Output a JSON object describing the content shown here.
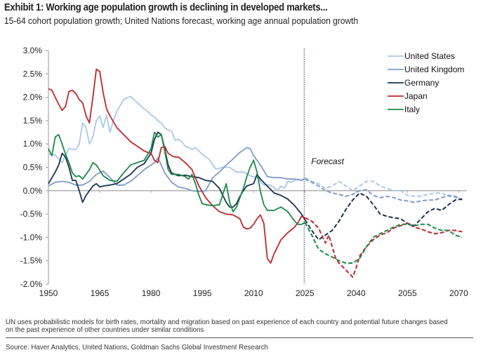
{
  "header": {
    "title": "Exhibit 1: Working age population growth is declining in developed markets...",
    "subtitle": "15-64 cohort population growth; United Nations forecast, working age annual population growth"
  },
  "footer": {
    "note": "UN uses probabilistic models for birth rates, mortality and migration based on past experience of each country and potential future changes based on the past experience of other countries under similar conditions",
    "source": "Source: Haver Analytics, United Nations, Goldman Sachs Global Investment Research"
  },
  "chart_data": {
    "type": "line",
    "title": "Exhibit 1: Working age population growth is declining in developed markets...",
    "subtitle": "15-64 cohort population growth; United Nations forecast, working age annual population growth",
    "xlabel": "",
    "ylabel": "",
    "xlim": [
      1950,
      2072
    ],
    "ylim": [
      -2.0,
      3.0
    ],
    "x_ticks": [
      "1950",
      "1965",
      "1980",
      "1995",
      "2010",
      "2025",
      "2040",
      "2055",
      "2070"
    ],
    "x_tick_values": [
      1950,
      1965,
      1980,
      1995,
      2010,
      2025,
      2040,
      2055,
      2070
    ],
    "y_ticks": [
      "3.0%",
      "2.5%",
      "2.0%",
      "1.5%",
      "1.0%",
      "0.5%",
      "0.0%",
      "-0.5%",
      "-1.0%",
      "-1.5%",
      "-2.0%"
    ],
    "y_tick_values": [
      3.0,
      2.5,
      2.0,
      1.5,
      1.0,
      0.5,
      0.0,
      -0.5,
      -1.0,
      -1.5,
      -2.0
    ],
    "forecast_start": 2025,
    "forecast_label": "Forecast",
    "legend_position": "top-right",
    "grid": false,
    "series": [
      {
        "name": "United States",
        "color": "#a9c9e6",
        "x": [
          1950,
          1952,
          1954,
          1955,
          1956,
          1958,
          1959,
          1960,
          1961,
          1962,
          1963,
          1964,
          1965,
          1966,
          1967,
          1968,
          1969,
          1970,
          1972,
          1974,
          1976,
          1978,
          1979,
          1980,
          1981,
          1982,
          1983,
          1984,
          1985,
          1986,
          1987,
          1988,
          1989,
          1990,
          1991,
          1992,
          1993,
          1995,
          1997,
          1999,
          2001,
          2003,
          2005,
          2007,
          2009,
          2011,
          2013,
          2015,
          2017,
          2018,
          2019,
          2020,
          2021,
          2022,
          2023,
          2024,
          2025,
          2027,
          2029,
          2031,
          2033,
          2035,
          2037,
          2039,
          2041,
          2043,
          2045,
          2047,
          2049,
          2051,
          2053,
          2055,
          2057,
          2059,
          2061,
          2063,
          2065,
          2067,
          2069,
          2071
        ],
        "values": [
          0.78,
          0.76,
          0.6,
          0.75,
          0.9,
          0.88,
          1.0,
          1.45,
          1.35,
          1.0,
          1.15,
          1.5,
          1.6,
          1.35,
          1.62,
          1.25,
          1.5,
          1.7,
          1.95,
          2.02,
          1.88,
          1.75,
          1.7,
          1.62,
          1.58,
          1.5,
          1.45,
          1.35,
          1.3,
          1.28,
          1.08,
          1.1,
          1.05,
          0.95,
          0.92,
          0.88,
          0.92,
          0.78,
          0.67,
          0.46,
          0.5,
          0.5,
          0.4,
          0.4,
          0.32,
          0.28,
          0.12,
          0.12,
          0.0,
          0.1,
          0.05,
          0.2,
          0.18,
          0.22,
          0.25,
          0.22,
          0.28,
          0.2,
          0.15,
          0.05,
          0.1,
          0.2,
          0.1,
          0.0,
          0.1,
          0.2,
          0.2,
          0.1,
          0.05,
          0.0,
          0.0,
          -0.1,
          -0.12,
          -0.12,
          -0.08,
          -0.05,
          -0.05,
          -0.12,
          -0.15,
          -0.18
        ],
        "forecast_from": 2025
      },
      {
        "name": "United Kingdom",
        "color": "#7f9cc8",
        "x": [
          1950,
          1952,
          1954,
          1956,
          1958,
          1960,
          1962,
          1964,
          1966,
          1968,
          1970,
          1972,
          1974,
          1976,
          1978,
          1980,
          1981,
          1982,
          1983,
          1984,
          1986,
          1988,
          1990,
          1992,
          1994,
          1996,
          1998,
          2000,
          2002,
          2004,
          2006,
          2008,
          2009,
          2010,
          2012,
          2014,
          2016,
          2018,
          2020,
          2022,
          2024,
          2025,
          2027,
          2029,
          2031,
          2033,
          2035,
          2037,
          2039,
          2041,
          2043,
          2045,
          2047,
          2049,
          2051,
          2053,
          2055,
          2057,
          2059,
          2061,
          2063,
          2065,
          2067,
          2069,
          2071
        ],
        "values": [
          0.1,
          0.18,
          0.2,
          0.18,
          0.12,
          0.12,
          0.2,
          0.35,
          0.42,
          0.28,
          0.12,
          0.12,
          0.2,
          0.32,
          0.45,
          0.55,
          0.6,
          0.7,
          0.55,
          0.38,
          0.18,
          0.08,
          0.05,
          0.0,
          -0.02,
          0.0,
          0.28,
          0.4,
          0.55,
          0.68,
          0.82,
          0.92,
          0.9,
          0.75,
          0.55,
          0.3,
          0.28,
          0.28,
          0.25,
          0.25,
          0.22,
          0.25,
          0.18,
          0.1,
          0.0,
          -0.05,
          -0.08,
          -0.12,
          -0.08,
          0.0,
          0.02,
          -0.1,
          -0.15,
          -0.12,
          -0.15,
          -0.2,
          -0.22,
          -0.25,
          -0.22,
          -0.2,
          -0.2,
          -0.15,
          -0.1,
          -0.12,
          -0.2
        ],
        "forecast_from": 2025
      },
      {
        "name": "Germany",
        "color": "#1b3250",
        "x": [
          1950,
          1952,
          1953,
          1954,
          1955,
          1956,
          1957,
          1958,
          1959,
          1960,
          1961,
          1962,
          1963,
          1964,
          1965,
          1966,
          1968,
          1970,
          1972,
          1974,
          1976,
          1978,
          1980,
          1981,
          1982,
          1983,
          1984,
          1985,
          1986,
          1988,
          1990,
          1992,
          1994,
          1996,
          1998,
          2000,
          2002,
          2003,
          2004,
          2005,
          2006,
          2007,
          2008,
          2010,
          2011,
          2012,
          2014,
          2016,
          2018,
          2020,
          2022,
          2024,
          2025,
          2027,
          2029,
          2031,
          2033,
          2035,
          2037,
          2039,
          2041,
          2043,
          2045,
          2047,
          2049,
          2051,
          2053,
          2055,
          2057,
          2059,
          2061,
          2063,
          2065,
          2067,
          2069,
          2071
        ],
        "values": [
          0.15,
          0.4,
          0.55,
          0.8,
          0.72,
          0.5,
          0.22,
          0.22,
          0.0,
          -0.25,
          -0.1,
          0.0,
          0.1,
          0.15,
          0.08,
          0.1,
          0.12,
          0.15,
          0.25,
          0.35,
          0.5,
          0.58,
          0.8,
          1.1,
          1.25,
          1.2,
          0.9,
          0.55,
          0.38,
          0.32,
          0.33,
          0.3,
          0.28,
          0.22,
          0.2,
          0.05,
          -0.25,
          -0.35,
          -0.35,
          -0.28,
          -0.12,
          0.0,
          0.1,
          0.15,
          0.35,
          0.25,
          0.1,
          -0.05,
          -0.1,
          -0.18,
          -0.32,
          -0.5,
          -0.62,
          -0.85,
          -1.05,
          -0.95,
          -0.85,
          -0.65,
          -0.4,
          -0.2,
          -0.05,
          -0.12,
          -0.3,
          -0.5,
          -0.55,
          -0.58,
          -0.6,
          -0.7,
          -0.75,
          -0.6,
          -0.45,
          -0.38,
          -0.42,
          -0.3,
          -0.2,
          -0.18
        ],
        "forecast_from": 2025
      },
      {
        "name": "Japan",
        "color": "#c0272d",
        "x": [
          1950,
          1951,
          1952,
          1953,
          1954,
          1955,
          1956,
          1957,
          1958,
          1959,
          1960,
          1961,
          1962,
          1963,
          1964,
          1965,
          1966,
          1967,
          1968,
          1970,
          1972,
          1974,
          1976,
          1978,
          1979,
          1980,
          1981,
          1982,
          1983,
          1984,
          1985,
          1986,
          1987,
          1988,
          1990,
          1992,
          1994,
          1996,
          1998,
          2000,
          2002,
          2004,
          2006,
          2007,
          2008,
          2009,
          2010,
          2011,
          2012,
          2013,
          2014,
          2015,
          2016,
          2018,
          2020,
          2022,
          2023,
          2024,
          2025,
          2027,
          2029,
          2031,
          2032,
          2033,
          2034,
          2035,
          2037,
          2039,
          2040,
          2041,
          2043,
          2045,
          2047,
          2049,
          2051,
          2053,
          2055,
          2057,
          2059,
          2061,
          2063,
          2065,
          2067,
          2069,
          2071
        ],
        "values": [
          2.18,
          2.15,
          2.0,
          1.85,
          1.72,
          1.8,
          2.12,
          2.15,
          2.08,
          1.95,
          1.88,
          1.6,
          1.45,
          2.0,
          2.6,
          2.55,
          2.1,
          1.75,
          1.6,
          1.35,
          1.2,
          1.05,
          0.95,
          0.85,
          0.82,
          0.8,
          0.65,
          0.6,
          0.92,
          0.95,
          0.8,
          0.75,
          0.72,
          0.72,
          0.6,
          0.45,
          0.1,
          -0.15,
          -0.32,
          -0.45,
          -0.5,
          -0.52,
          -0.6,
          -0.78,
          -0.82,
          -0.8,
          -0.72,
          -0.6,
          -0.52,
          -0.7,
          -1.45,
          -1.55,
          -1.35,
          -1.05,
          -0.9,
          -0.78,
          -0.68,
          -0.55,
          -0.58,
          -0.65,
          -0.8,
          -1.12,
          -0.95,
          -1.2,
          -1.45,
          -1.55,
          -1.7,
          -1.85,
          -1.65,
          -1.4,
          -1.2,
          -1.05,
          -0.95,
          -0.9,
          -0.8,
          -0.75,
          -0.7,
          -0.78,
          -0.82,
          -0.88,
          -0.92,
          -0.9,
          -0.85,
          -0.85,
          -0.88
        ],
        "forecast_from": 2025
      },
      {
        "name": "Italy",
        "color": "#1b8a4a",
        "x": [
          1950,
          1951,
          1952,
          1953,
          1954,
          1955,
          1956,
          1957,
          1958,
          1959,
          1960,
          1961,
          1962,
          1963,
          1964,
          1966,
          1968,
          1970,
          1972,
          1974,
          1976,
          1978,
          1980,
          1981,
          1982,
          1983,
          1984,
          1985,
          1986,
          1988,
          1990,
          1991,
          1992,
          1993,
          1994,
          1995,
          1996,
          1998,
          2000,
          2001,
          2002,
          2003,
          2004,
          2005,
          2006,
          2007,
          2008,
          2009,
          2010,
          2011,
          2012,
          2013,
          2014,
          2016,
          2018,
          2020,
          2022,
          2023,
          2024,
          2025,
          2027,
          2029,
          2031,
          2033,
          2035,
          2037,
          2039,
          2041,
          2043,
          2045,
          2047,
          2049,
          2051,
          2053,
          2055,
          2057,
          2059,
          2061,
          2063,
          2065,
          2067,
          2069,
          2071
        ],
        "values": [
          0.9,
          0.75,
          1.15,
          1.2,
          1.0,
          0.78,
          0.6,
          0.38,
          0.3,
          0.32,
          0.25,
          0.35,
          0.45,
          0.6,
          0.55,
          0.32,
          0.22,
          0.2,
          0.38,
          0.55,
          0.6,
          0.65,
          0.9,
          1.25,
          1.15,
          1.2,
          0.85,
          0.45,
          0.35,
          0.35,
          0.3,
          0.25,
          0.35,
          0.15,
          -0.1,
          -0.28,
          -0.3,
          -0.32,
          -0.3,
          -0.08,
          0.15,
          -0.25,
          -0.45,
          -0.35,
          -0.15,
          0.05,
          0.3,
          0.5,
          0.65,
          0.4,
          -0.02,
          -0.3,
          -0.42,
          -0.42,
          -0.35,
          -0.45,
          -0.65,
          -0.72,
          -0.72,
          -0.68,
          -0.95,
          -1.25,
          -1.35,
          -1.42,
          -1.5,
          -1.55,
          -1.55,
          -1.45,
          -1.2,
          -1.0,
          -0.92,
          -0.85,
          -0.78,
          -0.72,
          -0.72,
          -0.75,
          -0.72,
          -0.72,
          -0.8,
          -0.85,
          -0.85,
          -0.95,
          -1.0
        ],
        "forecast_from": 2025
      }
    ]
  }
}
